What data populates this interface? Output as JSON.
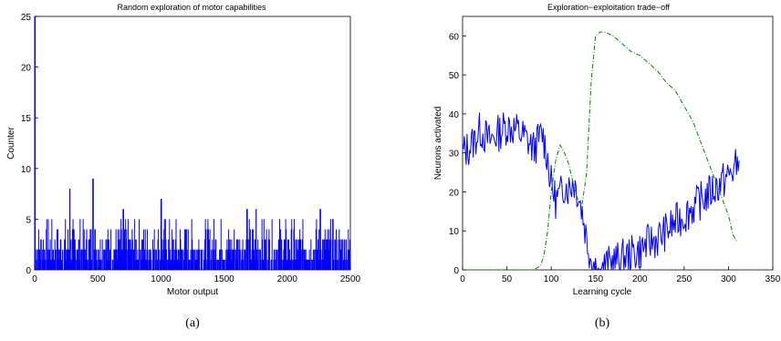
{
  "captions": [
    "(a)",
    "(b)"
  ],
  "chart_data": [
    {
      "type": "bar",
      "title": "Random exploration of motor capabilities",
      "xlabel": "Motor output",
      "ylabel": "Counter",
      "xlim": [
        0,
        2500
      ],
      "ylim": [
        0,
        25
      ],
      "xticks": [
        0,
        500,
        1000,
        1500,
        2000,
        2500
      ],
      "yticks": [
        0,
        5,
        10,
        15,
        20,
        25
      ],
      "color": "#0000ff",
      "peaks": [
        {
          "x": 0,
          "y": 25
        },
        {
          "x": 275,
          "y": 8
        },
        {
          "x": 460,
          "y": 9
        },
        {
          "x": 700,
          "y": 6
        },
        {
          "x": 1000,
          "y": 7
        },
        {
          "x": 1680,
          "y": 6
        },
        {
          "x": 1750,
          "y": 6
        },
        {
          "x": 2260,
          "y": 6
        }
      ],
      "values_note": ""
    },
    {
      "type": "line",
      "title": "Exploration−exploitation trade−off",
      "xlabel": "Learning cycle",
      "ylabel": "Neurons activated",
      "xlim": [
        0,
        350
      ],
      "ylim": [
        0,
        65
      ],
      "xticks": [
        0,
        50,
        100,
        150,
        200,
        250,
        300,
        350
      ],
      "yticks": [
        0,
        10,
        20,
        30,
        40,
        50,
        60
      ],
      "series": [
        {
          "color": "#0000ff",
          "style": "solid",
          "x": [
            0,
            10,
            20,
            30,
            40,
            50,
            60,
            70,
            80,
            90,
            95,
            100,
            105,
            110,
            115,
            120,
            125,
            130,
            135,
            140,
            145,
            150,
            155,
            160,
            170,
            180,
            190,
            200,
            210,
            220,
            230,
            240,
            250,
            260,
            270,
            280,
            290,
            300,
            310,
            312
          ],
          "y": [
            30,
            32,
            36,
            33,
            35,
            37,
            36,
            34,
            31,
            35,
            30,
            22,
            18,
            19,
            22,
            21,
            23,
            20,
            15,
            8,
            3,
            1,
            0,
            1,
            2,
            3,
            4,
            5,
            7,
            8,
            10,
            12,
            14,
            16,
            18,
            20,
            22,
            24,
            27,
            28
          ]
        },
        {
          "color": "#008000",
          "style": "dashdot",
          "x": [
            0,
            20,
            40,
            60,
            80,
            88,
            92,
            96,
            100,
            105,
            110,
            115,
            120,
            125,
            130,
            135,
            140,
            145,
            150,
            155,
            160,
            170,
            180,
            190,
            200,
            210,
            220,
            230,
            240,
            250,
            260,
            270,
            280,
            290,
            300,
            305,
            310
          ],
          "y": [
            0,
            0,
            0,
            0,
            0,
            1,
            4,
            10,
            20,
            28,
            32,
            30,
            27,
            22,
            18,
            17,
            25,
            48,
            60,
            61,
            61,
            60,
            58,
            56,
            55,
            53,
            51,
            48,
            46,
            42,
            38,
            32,
            26,
            20,
            14,
            9,
            7
          ]
        }
      ]
    }
  ]
}
